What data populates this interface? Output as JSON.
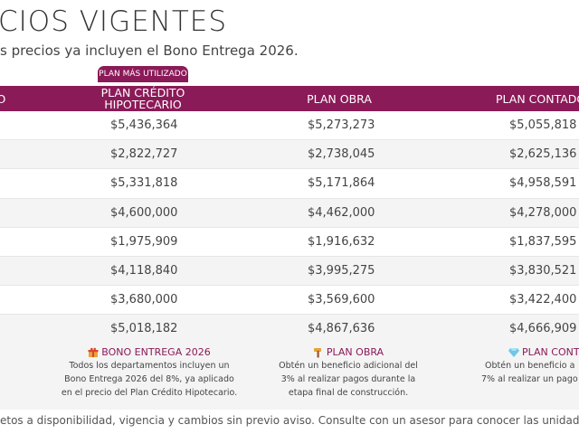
{
  "title": "CIOS VIGENTES",
  "subtitle": "s precios ya incluyen el Bono Entrega 2026.",
  "badge": "PLAN MÁS UTILIZADO",
  "header": {
    "col0": "LO",
    "col1_line1": "PLAN CRÉDITO",
    "col1_line2": "HIPOTECARIO",
    "col2": "PLAN OBRA",
    "col3": "PLAN CONTADO"
  },
  "rows": [
    {
      "credito": "$5,436,364",
      "obra": "$5,273,273",
      "contado": "$5,055,818"
    },
    {
      "credito": "$2,822,727",
      "obra": "$2,738,045",
      "contado": "$2,625,136"
    },
    {
      "credito": "$5,331,818",
      "obra": "$5,171,864",
      "contado": "$4,958,591"
    },
    {
      "credito": "$4,600,000",
      "obra": "$4,462,000",
      "contado": "$4,278,000"
    },
    {
      "credito": "$1,975,909",
      "obra": "$1,916,632",
      "contado": "$1,837,595"
    },
    {
      "credito": "$4,118,840",
      "obra": "$3,995,275",
      "contado": "$3,830,521"
    },
    {
      "credito": "$3,680,000",
      "obra": "$3,569,600",
      "contado": "$3,422,400"
    },
    {
      "credito": "$5,018,182",
      "obra": "$4,867,636",
      "contado": "$4,666,909"
    }
  ],
  "info": {
    "bono": {
      "title": "BONO ENTREGA 2026",
      "icon": "gift-icon",
      "lines": [
        "Todos los departamentos incluyen un",
        "Bono Entrega 2026 del 8%, ya aplicado",
        "en el precio del Plan Crédito Hipotecario."
      ]
    },
    "obra": {
      "title": "PLAN OBRA",
      "icon": "hammer-icon",
      "lines": [
        "Obtén un beneficio adicional del",
        "3% al realizar pagos durante la",
        "etapa final de construcción."
      ]
    },
    "contado": {
      "title": "PLAN CONTAD",
      "icon": "diamond-icon",
      "lines": [
        "Obtén un beneficio a",
        "7% al realizar un pago"
      ]
    }
  },
  "footer": "etos a disponibilidad, vigencia y cambios sin previo aviso. Consulte con un asesor para conocer las unidades",
  "colors": {
    "accent": "#8b1a58",
    "rowAlt": "#f4f4f4"
  }
}
